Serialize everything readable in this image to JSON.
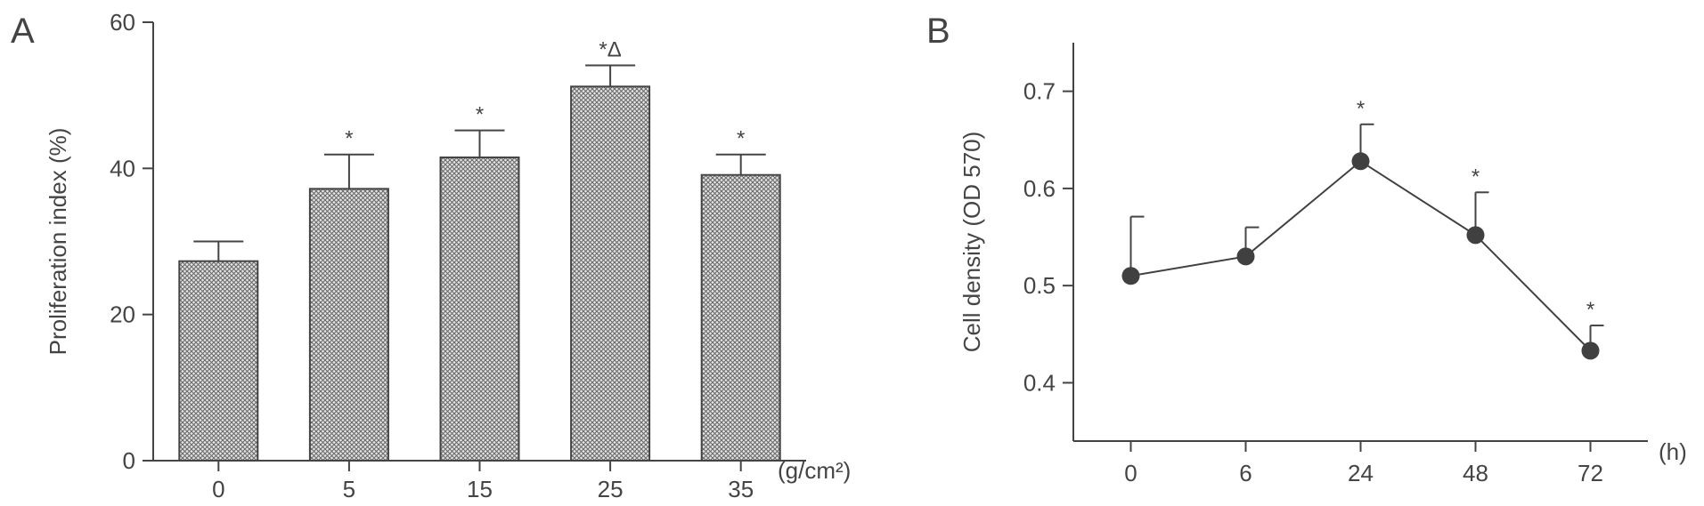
{
  "colors": {
    "axis": "#444444",
    "bar_fill": "#9a9a9a",
    "marker": "#404040",
    "annotation": "#888888"
  },
  "chart_data": [
    {
      "panel": "A",
      "type": "bar",
      "categories": [
        "0",
        "5",
        "15",
        "25",
        "35"
      ],
      "values": [
        27.3,
        37.2,
        41.5,
        51.2,
        39.1
      ],
      "error": [
        2.7,
        4.7,
        3.7,
        2.9,
        2.8
      ],
      "annotations": [
        "",
        "*",
        "*",
        "*Δ",
        "*"
      ],
      "xlabel": "",
      "x_unit_label": "(g/cm²)",
      "ylabel": "Proliferation index (%)",
      "ylim": [
        0,
        60
      ],
      "yticks": [
        "0",
        "20",
        "40",
        "60"
      ],
      "grid": false
    },
    {
      "panel": "B",
      "type": "line",
      "x": [
        "0",
        "6",
        "24",
        "48",
        "72"
      ],
      "values": [
        0.51,
        0.53,
        0.628,
        0.552,
        0.433
      ],
      "error": [
        0.061,
        0.03,
        0.038,
        0.044,
        0.026
      ],
      "annotations": [
        "",
        "",
        "*",
        "*",
        "*"
      ],
      "xlabel": "",
      "x_unit_label": "(h)",
      "ylabel": "Cell density (OD 570)",
      "ylim": [
        0.34,
        0.75
      ],
      "yticks": [
        "0.4",
        "0.5",
        "0.6",
        "0.7"
      ],
      "grid": false
    }
  ]
}
